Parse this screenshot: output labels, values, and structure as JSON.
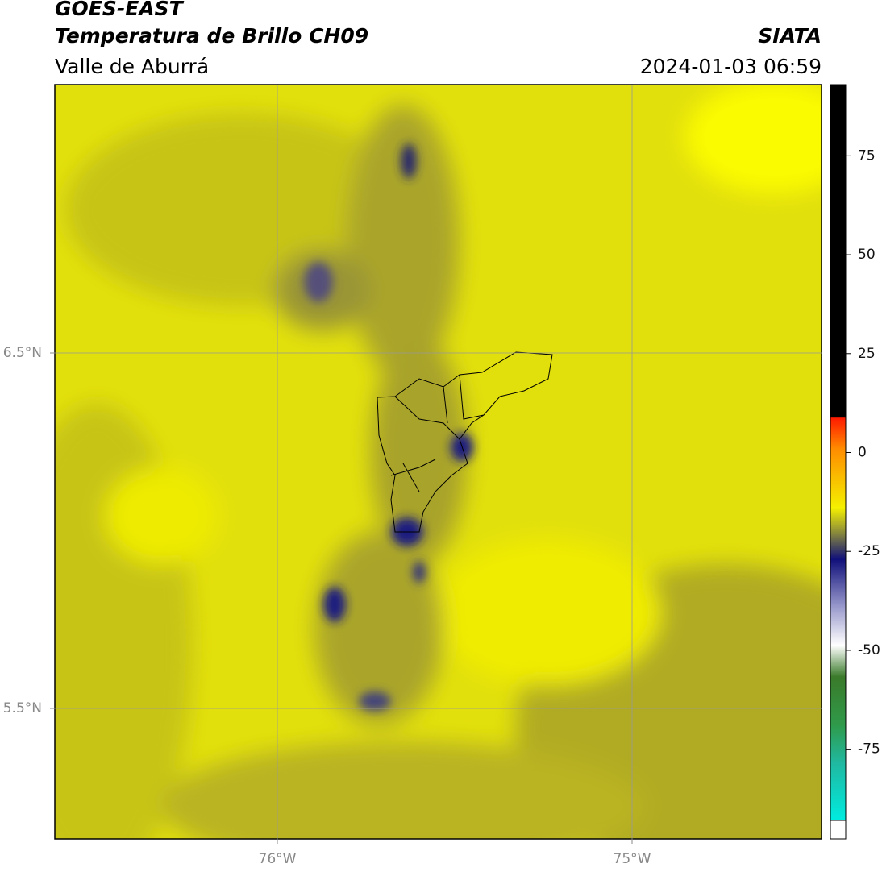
{
  "header": {
    "title": "GOES-EAST",
    "subtitle": "Temperatura de Brillo CH09",
    "region": "Valle de Aburrá",
    "source": "SIATA",
    "timestamp": "2024-01-03 06:59"
  },
  "map": {
    "lat_labels": [
      "6.5°N",
      "5.5°N"
    ],
    "lon_labels": [
      "76°W",
      "75°W"
    ]
  },
  "colorbar": {
    "lim": [
      -93,
      93
    ],
    "ticks": [
      75,
      50,
      25,
      0,
      -25,
      -50,
      -75
    ]
  }
}
